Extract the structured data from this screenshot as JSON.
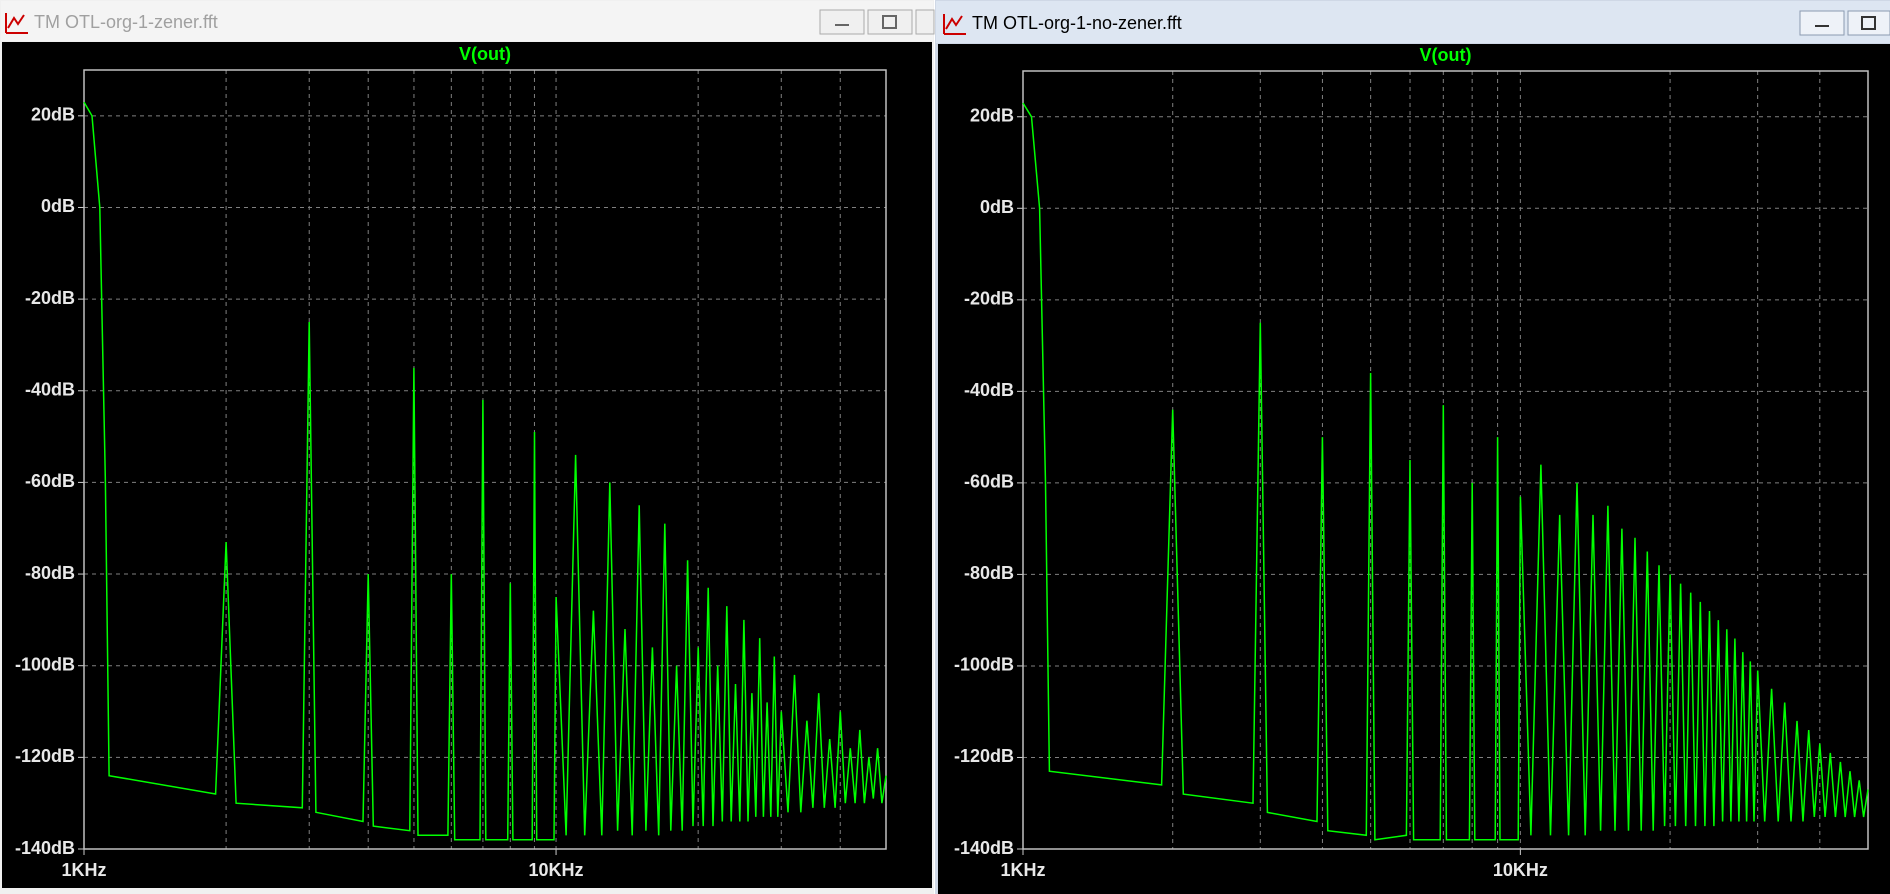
{
  "chart_data": [
    {
      "type": "line",
      "window_title": "TM OTL-org-1-zener.fft",
      "active": false,
      "xlog": true,
      "grid": true,
      "xlim": [
        1000,
        50000
      ],
      "xticks": [
        {
          "value": 1000,
          "label": "1KHz"
        },
        {
          "value": 10000,
          "label": "10KHz"
        }
      ],
      "xminor": [
        2000,
        3000,
        4000,
        5000,
        6000,
        7000,
        8000,
        9000,
        20000,
        30000,
        40000
      ],
      "ylim": [
        -140,
        30
      ],
      "yticks": [
        {
          "value": -140,
          "label": "-140dB"
        },
        {
          "value": -120,
          "label": "-120dB"
        },
        {
          "value": -100,
          "label": "-100dB"
        },
        {
          "value": -80,
          "label": "-80dB"
        },
        {
          "value": -60,
          "label": "-60dB"
        },
        {
          "value": -40,
          "label": "-40dB"
        },
        {
          "value": -20,
          "label": "-20dB"
        },
        {
          "value": 0,
          "label": "0dB"
        },
        {
          "value": 20,
          "label": "20dB"
        }
      ],
      "series": [
        {
          "name": "V(out)",
          "color": "#00ff00",
          "x": [
            1000,
            1040,
            1080,
            1110,
            1130,
            1900,
            2000,
            2100,
            2900,
            3000,
            3100,
            3900,
            4000,
            4100,
            4900,
            5000,
            5100,
            5900,
            6000,
            6100,
            6900,
            7000,
            7100,
            7900,
            8000,
            8100,
            8900,
            9000,
            9100,
            9900,
            10000,
            10500,
            11000,
            11500,
            12000,
            12500,
            13000,
            13500,
            14000,
            14500,
            15000,
            15500,
            16000,
            16500,
            17000,
            17500,
            18000,
            18500,
            19000,
            19500,
            20000,
            20500,
            21000,
            21500,
            22000,
            22500,
            23000,
            23500,
            24000,
            24500,
            25000,
            25500,
            26000,
            26500,
            27000,
            27500,
            28000,
            28500,
            29000,
            29500,
            30000,
            31000,
            32000,
            33000,
            34000,
            35000,
            36000,
            37000,
            38000,
            39000,
            40000,
            41000,
            42000,
            43000,
            44000,
            45000,
            46000,
            47000,
            48000,
            49000,
            50000
          ],
          "values": [
            23,
            20,
            0,
            -60,
            -124,
            -128,
            -73,
            -130,
            -131,
            -25,
            -132,
            -134,
            -80,
            -135,
            -136,
            -35,
            -137,
            -137,
            -80,
            -138,
            -138,
            -42,
            -138,
            -138,
            -82,
            -138,
            -138,
            -49,
            -138,
            -138,
            -85,
            -137,
            -54,
            -137,
            -88,
            -137,
            -60,
            -136,
            -92,
            -137,
            -65,
            -136,
            -96,
            -137,
            -69,
            -136,
            -100,
            -136,
            -77,
            -135,
            -96,
            -135,
            -83,
            -135,
            -100,
            -134,
            -87,
            -134,
            -104,
            -134,
            -90,
            -134,
            -106,
            -133,
            -94,
            -133,
            -108,
            -133,
            -98,
            -133,
            -110,
            -132,
            -102,
            -132,
            -112,
            -131,
            -106,
            -131,
            -116,
            -131,
            -110,
            -130,
            -118,
            -130,
            -114,
            -130,
            -120,
            -129,
            -118,
            -130,
            -124
          ]
        }
      ]
    },
    {
      "type": "line",
      "window_title": "TM OTL-org-1-no-zener.fft",
      "active": true,
      "xlog": true,
      "grid": true,
      "xlim": [
        1000,
        50000
      ],
      "xticks": [
        {
          "value": 1000,
          "label": "1KHz"
        },
        {
          "value": 10000,
          "label": "10KHz"
        }
      ],
      "xminor": [
        2000,
        3000,
        4000,
        5000,
        6000,
        7000,
        8000,
        9000,
        20000,
        30000,
        40000
      ],
      "ylim": [
        -140,
        30
      ],
      "yticks": [
        {
          "value": -140,
          "label": "-140dB"
        },
        {
          "value": -120,
          "label": "-120dB"
        },
        {
          "value": -100,
          "label": "-100dB"
        },
        {
          "value": -80,
          "label": "-80dB"
        },
        {
          "value": -60,
          "label": "-60dB"
        },
        {
          "value": -40,
          "label": "-40dB"
        },
        {
          "value": -20,
          "label": "-20dB"
        },
        {
          "value": 0,
          "label": "0dB"
        },
        {
          "value": 20,
          "label": "20dB"
        }
      ],
      "series": [
        {
          "name": "V(out)",
          "color": "#00ff00",
          "x": [
            1000,
            1040,
            1080,
            1110,
            1130,
            1900,
            2000,
            2100,
            2900,
            3000,
            3100,
            3900,
            4000,
            4100,
            4900,
            5000,
            5100,
            5900,
            6000,
            6100,
            6900,
            7000,
            7100,
            7900,
            8000,
            8100,
            8900,
            9000,
            9100,
            9900,
            10000,
            10500,
            11000,
            11500,
            12000,
            12500,
            13000,
            13500,
            14000,
            14500,
            15000,
            15500,
            16000,
            16500,
            17000,
            17500,
            18000,
            18500,
            19000,
            19500,
            20000,
            20500,
            21000,
            21500,
            22000,
            22500,
            23000,
            23500,
            24000,
            24500,
            25000,
            25500,
            26000,
            26500,
            27000,
            27500,
            28000,
            28500,
            29000,
            29500,
            30000,
            31000,
            32000,
            33000,
            34000,
            35000,
            36000,
            37000,
            38000,
            39000,
            40000,
            41000,
            42000,
            43000,
            44000,
            45000,
            46000,
            47000,
            48000,
            49000,
            50000
          ],
          "values": [
            23,
            20,
            0,
            -60,
            -123,
            -126,
            -44,
            -128,
            -130,
            -25,
            -132,
            -134,
            -50,
            -136,
            -137,
            -36,
            -138,
            -137,
            -55,
            -138,
            -138,
            -43,
            -138,
            -138,
            -60,
            -138,
            -138,
            -50,
            -138,
            -138,
            -63,
            -137,
            -56,
            -137,
            -67,
            -137,
            -60,
            -137,
            -67,
            -136,
            -65,
            -136,
            -70,
            -136,
            -72,
            -136,
            -75,
            -136,
            -78,
            -135,
            -80,
            -135,
            -82,
            -135,
            -84,
            -135,
            -86,
            -135,
            -88,
            -135,
            -90,
            -134,
            -92,
            -134,
            -94,
            -134,
            -97,
            -134,
            -99,
            -134,
            -101,
            -134,
            -105,
            -134,
            -108,
            -134,
            -112,
            -134,
            -114,
            -133,
            -117,
            -133,
            -119,
            -133,
            -121,
            -133,
            -123,
            -133,
            -125,
            -133,
            -127
          ]
        }
      ]
    }
  ]
}
